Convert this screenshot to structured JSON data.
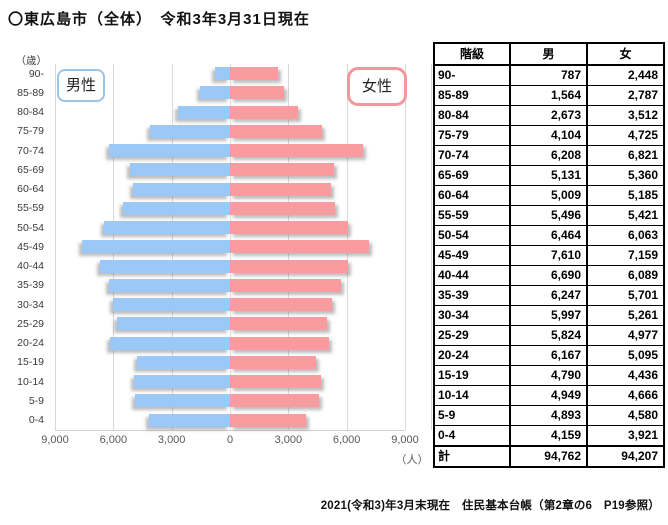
{
  "title": "〇東広島市（全体）　令和3年3月31日現在",
  "source_note": "2021(令和3)年3月末現在　住民基本台帳（第2章の6　P19参照）",
  "colors": {
    "male": "#9cc8f7",
    "female": "#f99b9f",
    "male_border": "#9cc3e8",
    "female_border": "#f4979c",
    "gridline": "#d9d9d9"
  },
  "chart_data": {
    "type": "bar",
    "subtype": "population_pyramid",
    "title": "東広島市（全体）　令和3年3月31日現在",
    "categories": [
      "90-",
      "85-89",
      "80-84",
      "75-79",
      "70-74",
      "65-69",
      "60-64",
      "55-59",
      "50-54",
      "45-49",
      "40-44",
      "35-39",
      "30-34",
      "25-29",
      "20-24",
      "15-19",
      "10-14",
      "5-9",
      "0-4"
    ],
    "series": [
      {
        "name": "男",
        "legend": "男性",
        "side": "left",
        "values": [
          787,
          1564,
          2673,
          4104,
          6208,
          5131,
          5009,
          5496,
          6464,
          7610,
          6690,
          6247,
          5997,
          5824,
          6167,
          4790,
          4949,
          4893,
          4159
        ]
      },
      {
        "name": "女",
        "legend": "女性",
        "side": "right",
        "values": [
          2448,
          2787,
          3512,
          4725,
          6821,
          5360,
          5185,
          5421,
          6063,
          7159,
          6089,
          5701,
          5261,
          4977,
          5095,
          4436,
          4666,
          4580,
          3921
        ]
      }
    ],
    "x_axis": {
      "max": 9000,
      "tick_interval": 3000,
      "ticks": [
        "9,000",
        "6,000",
        "3,000",
        "0",
        "3,000",
        "6,000",
        "9,000"
      ],
      "unit": "（人）"
    },
    "y_axis": {
      "unit": "（歳）"
    },
    "legend": {
      "male": "男性",
      "female": "女性"
    },
    "grid": true,
    "legend_position": "inside-top"
  },
  "table": {
    "headers": [
      "階級",
      "男",
      "女"
    ],
    "rows": [
      [
        "90-",
        "787",
        "2,448"
      ],
      [
        "85-89",
        "1,564",
        "2,787"
      ],
      [
        "80-84",
        "2,673",
        "3,512"
      ],
      [
        "75-79",
        "4,104",
        "4,725"
      ],
      [
        "70-74",
        "6,208",
        "6,821"
      ],
      [
        "65-69",
        "5,131",
        "5,360"
      ],
      [
        "60-64",
        "5,009",
        "5,185"
      ],
      [
        "55-59",
        "5,496",
        "5,421"
      ],
      [
        "50-54",
        "6,464",
        "6,063"
      ],
      [
        "45-49",
        "7,610",
        "7,159"
      ],
      [
        "40-44",
        "6,690",
        "6,089"
      ],
      [
        "35-39",
        "6,247",
        "5,701"
      ],
      [
        "30-34",
        "5,997",
        "5,261"
      ],
      [
        "25-29",
        "5,824",
        "4,977"
      ],
      [
        "20-24",
        "6,167",
        "5,095"
      ],
      [
        "15-19",
        "4,790",
        "4,436"
      ],
      [
        "10-14",
        "4,949",
        "4,666"
      ],
      [
        "5-9",
        "4,893",
        "4,580"
      ],
      [
        "0-4",
        "4,159",
        "3,921"
      ]
    ],
    "total_row": [
      "計",
      "94,762",
      "94,207"
    ]
  }
}
